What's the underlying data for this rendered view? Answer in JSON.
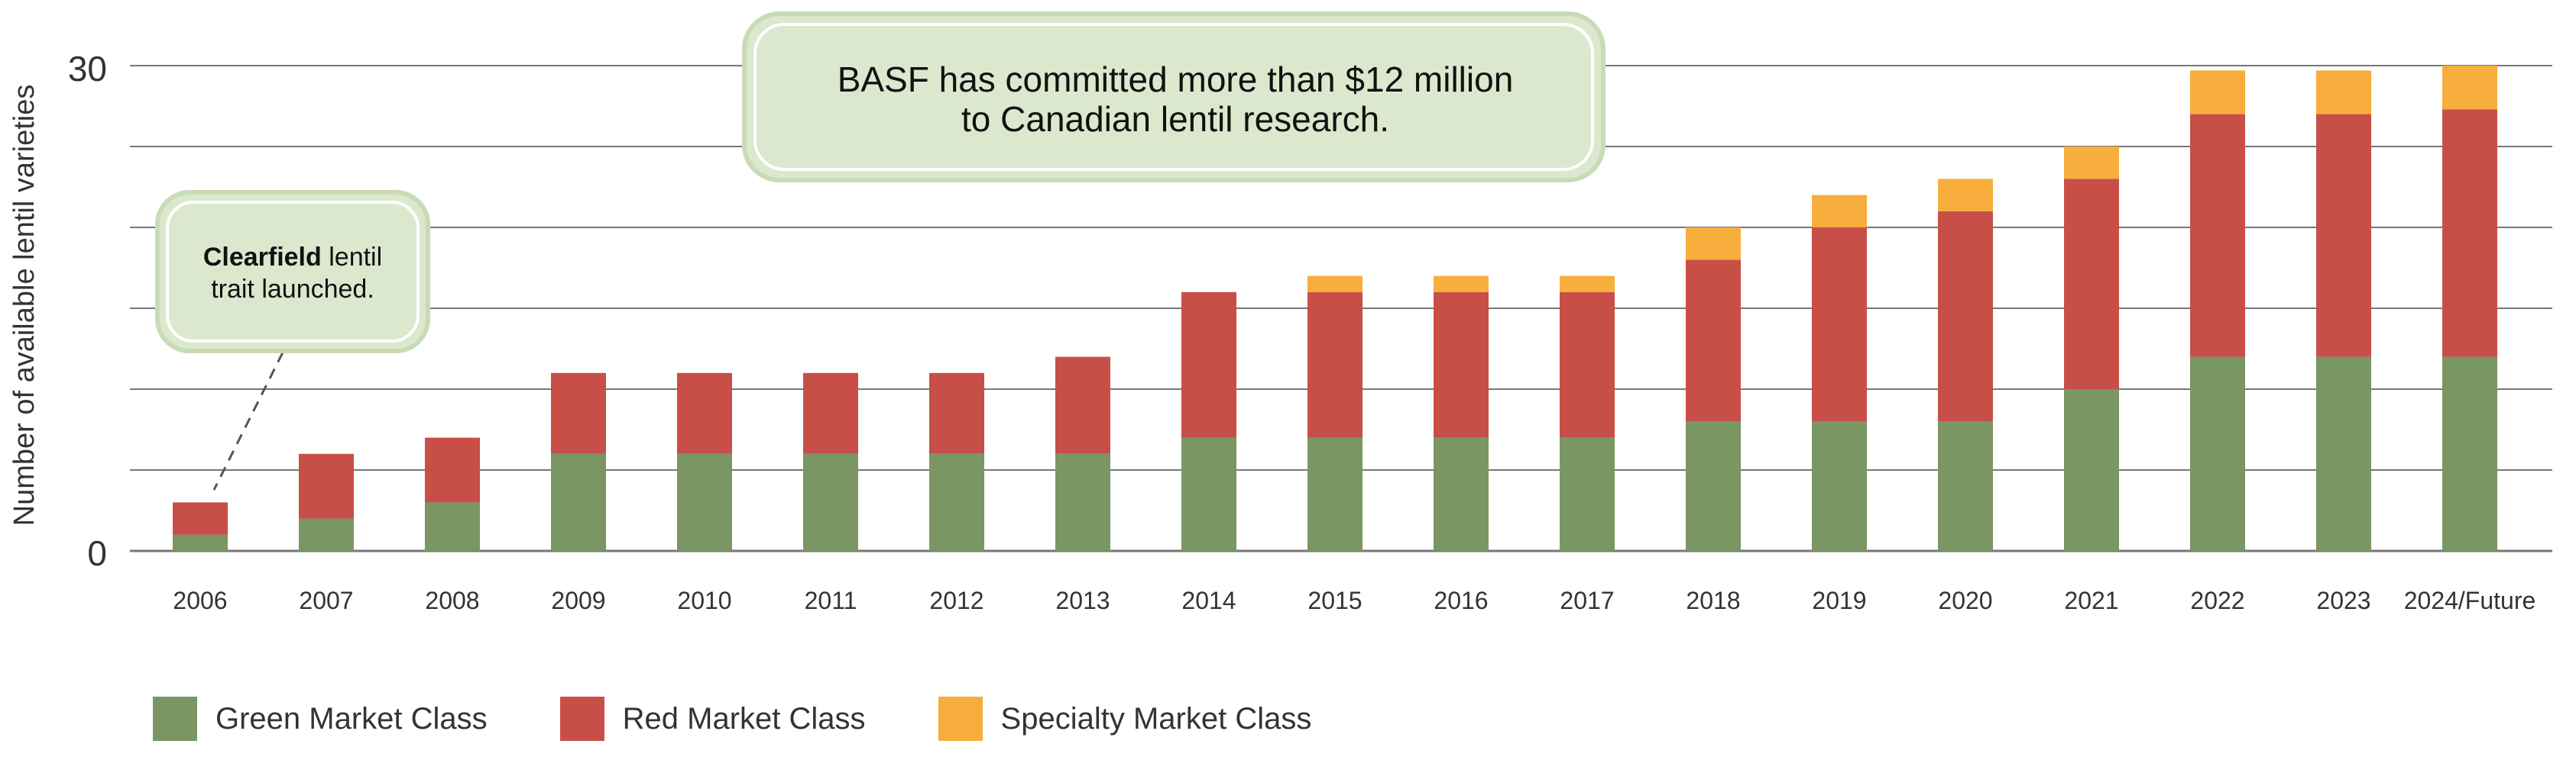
{
  "chart_data": {
    "type": "bar",
    "stacked": true,
    "title": "",
    "xlabel": "",
    "ylabel": "Number of available lentil varieties",
    "ylim": [
      0,
      30
    ],
    "yticks": [
      0,
      30
    ],
    "grid": true,
    "legend_position": "bottom-left",
    "categories": [
      "2006",
      "2007",
      "2008",
      "2009",
      "2010",
      "2011",
      "2012",
      "2013",
      "2014",
      "2015",
      "2016",
      "2017",
      "2018",
      "2019",
      "2020",
      "2021",
      "2022",
      "2023",
      "2024/Future"
    ],
    "series": [
      {
        "name": "Green Market Class",
        "color": "#7a9663",
        "values": [
          1,
          2,
          3,
          6,
          6,
          6,
          6,
          6,
          7,
          7,
          7,
          7,
          8,
          8,
          8,
          10,
          12,
          12,
          12
        ]
      },
      {
        "name": "Red Market Class",
        "color": "#c84f47",
        "values": [
          2,
          4,
          4,
          5,
          5,
          5,
          5,
          6,
          9,
          9,
          9,
          9,
          10,
          12,
          13,
          13,
          15,
          15,
          15.3
        ]
      },
      {
        "name": "Specialty Market Class",
        "color": "#f7ae3c",
        "values": [
          0,
          0,
          0,
          0,
          0,
          0,
          0,
          0,
          0,
          1,
          1,
          1,
          2,
          2,
          2,
          2,
          2.7,
          2.7,
          2.7
        ]
      }
    ],
    "annotations": {
      "basf": {
        "line1": "BASF has committed more than $12 million",
        "line2": "to Canadian lentil research."
      },
      "clearfield": {
        "bold": "Clearfield",
        "rest": " lentil",
        "line2": "trait launched."
      }
    }
  }
}
